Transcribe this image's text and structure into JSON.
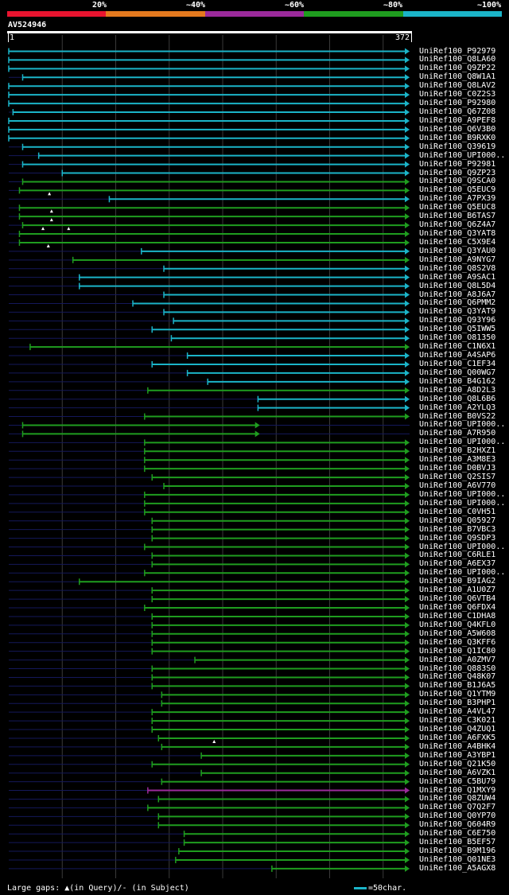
{
  "legend": {
    "colors": [
      "#e8142f",
      "#e4791e",
      "#9b2a9b",
      "#1f9d1f",
      "#1bb4c8"
    ],
    "labels": [
      "20%",
      "~40%",
      "~60%",
      "~80%",
      "~100%"
    ]
  },
  "query": {
    "name": "AV524946",
    "start": "1",
    "end": "372",
    "length": 372
  },
  "footer": {
    "gap_text": "Large gaps: ▲(in Query)/- (in Subject)",
    "scale_text": "=50char.",
    "scale_color": "#1bb4c8"
  },
  "chart_data": {
    "type": "alignment-overview",
    "colors": {
      "c": "#1bb4c8",
      "g": "#1f9d1f",
      "m": "#9b2a9b"
    },
    "hits": [
      {
        "name": "UniRef100_P92979",
        "start": 1,
        "end": 372,
        "color": "c"
      },
      {
        "name": "UniRef100_Q8LA60",
        "start": 1,
        "end": 372,
        "color": "c"
      },
      {
        "name": "UniRef100_Q9ZP22",
        "start": 1,
        "end": 372,
        "color": "c"
      },
      {
        "name": "UniRef100_Q8W1A1",
        "start": 14,
        "end": 372,
        "color": "c"
      },
      {
        "name": "UniRef100_Q8LAV2",
        "start": 1,
        "end": 372,
        "color": "c"
      },
      {
        "name": "UniRef100_C0Z2S3",
        "start": 1,
        "end": 372,
        "color": "c"
      },
      {
        "name": "UniRef100_P92980",
        "start": 1,
        "end": 372,
        "color": "c"
      },
      {
        "name": "UniRef100_Q67Z08",
        "start": 5,
        "end": 372,
        "color": "c"
      },
      {
        "name": "UniRef100_A9PEF8",
        "start": 1,
        "end": 372,
        "color": "c"
      },
      {
        "name": "UniRef100_Q6V3B0",
        "start": 1,
        "end": 372,
        "color": "c"
      },
      {
        "name": "UniRef100_B9RXK0",
        "start": 1,
        "end": 372,
        "color": "c"
      },
      {
        "name": "UniRef100_Q39619",
        "start": 14,
        "end": 372,
        "color": "c"
      },
      {
        "name": "UniRef100_UPI000..",
        "start": 29,
        "end": 372,
        "color": "c"
      },
      {
        "name": "UniRef100_P92981",
        "start": 14,
        "end": 372,
        "color": "c"
      },
      {
        "name": "UniRef100_Q9ZP23",
        "start": 51,
        "end": 372,
        "color": "c"
      },
      {
        "name": "UniRef100_Q9SCA0",
        "start": 14,
        "end": 372,
        "color": "g"
      },
      {
        "name": "UniRef100_Q5EUC9",
        "start": 11,
        "end": 372,
        "color": "g",
        "query_gaps": [
          39
        ]
      },
      {
        "name": "UniRef100_A7PX39",
        "start": 95,
        "end": 372,
        "color": "c"
      },
      {
        "name": "UniRef100_Q5EUC8",
        "start": 11,
        "end": 372,
        "color": "g",
        "query_gaps": [
          41
        ]
      },
      {
        "name": "UniRef100_B6TAS7",
        "start": 11,
        "end": 372,
        "color": "g",
        "query_gaps": [
          41
        ]
      },
      {
        "name": "UniRef100_Q6Z4A7",
        "start": 14,
        "end": 372,
        "color": "g",
        "query_gaps": [
          33,
          57
        ]
      },
      {
        "name": "UniRef100_Q3YAT8",
        "start": 11,
        "end": 372,
        "color": "g"
      },
      {
        "name": "UniRef100_C5X9E4",
        "start": 11,
        "end": 372,
        "color": "g",
        "query_gaps": [
          38
        ]
      },
      {
        "name": "UniRef100_Q3YAU0",
        "start": 125,
        "end": 372,
        "color": "c"
      },
      {
        "name": "UniRef100_A9NYG7",
        "start": 61,
        "end": 372,
        "color": "g"
      },
      {
        "name": "UniRef100_Q8S2V8",
        "start": 146,
        "end": 372,
        "color": "c"
      },
      {
        "name": "UniRef100_A9SAC1",
        "start": 67,
        "end": 372,
        "color": "c"
      },
      {
        "name": "UniRef100_Q8L5D4",
        "start": 67,
        "end": 372,
        "color": "c"
      },
      {
        "name": "UniRef100_A8J6A7",
        "start": 146,
        "end": 372,
        "color": "c"
      },
      {
        "name": "UniRef100_Q6PMM2",
        "start": 117,
        "end": 372,
        "color": "c"
      },
      {
        "name": "UniRef100_Q3YAT9",
        "start": 146,
        "end": 372,
        "color": "c"
      },
      {
        "name": "UniRef100_Q93Y96",
        "start": 155,
        "end": 372,
        "color": "c"
      },
      {
        "name": "UniRef100_Q5IWW5",
        "start": 135,
        "end": 372,
        "color": "c"
      },
      {
        "name": "UniRef100_O81350",
        "start": 153,
        "end": 372,
        "color": "c"
      },
      {
        "name": "UniRef100_C1N6X1",
        "start": 21,
        "end": 372,
        "color": "g"
      },
      {
        "name": "UniRef100_A4SAP6",
        "start": 168,
        "end": 372,
        "color": "c"
      },
      {
        "name": "UniRef100_C1EF34",
        "start": 135,
        "end": 372,
        "color": "c"
      },
      {
        "name": "UniRef100_Q00WG7",
        "start": 168,
        "end": 372,
        "color": "c"
      },
      {
        "name": "UniRef100_B4G162",
        "start": 187,
        "end": 372,
        "color": "c"
      },
      {
        "name": "UniRef100_A8D2L3",
        "start": 131,
        "end": 372,
        "color": "g"
      },
      {
        "name": "UniRef100_Q8L6B6",
        "start": 234,
        "end": 372,
        "color": "c"
      },
      {
        "name": "UniRef100_A2YLQ3",
        "start": 234,
        "end": 372,
        "color": "c"
      },
      {
        "name": "UniRef100_B0VS22",
        "start": 128,
        "end": 372,
        "color": "g"
      },
      {
        "name": "UniRef100_UPI000..",
        "start": 14,
        "end": 232,
        "color": "g"
      },
      {
        "name": "UniRef100_A7R950",
        "start": 14,
        "end": 232,
        "color": "g"
      },
      {
        "name": "UniRef100_UPI000..",
        "start": 128,
        "end": 372,
        "color": "g"
      },
      {
        "name": "UniRef100_B2HXZ1",
        "start": 128,
        "end": 372,
        "color": "g"
      },
      {
        "name": "UniRef100_A3M8E3",
        "start": 128,
        "end": 372,
        "color": "g"
      },
      {
        "name": "UniRef100_D0BVJ3",
        "start": 128,
        "end": 372,
        "color": "g"
      },
      {
        "name": "UniRef100_Q2SIS7",
        "start": 135,
        "end": 372,
        "color": "g"
      },
      {
        "name": "UniRef100_A6V770",
        "start": 146,
        "end": 372,
        "color": "g"
      },
      {
        "name": "UniRef100_UPI000..",
        "start": 128,
        "end": 372,
        "color": "g"
      },
      {
        "name": "UniRef100_UPI000..",
        "start": 128,
        "end": 372,
        "color": "g"
      },
      {
        "name": "UniRef100_C0VH51",
        "start": 128,
        "end": 372,
        "color": "g"
      },
      {
        "name": "UniRef100_Q05927",
        "start": 135,
        "end": 372,
        "color": "g"
      },
      {
        "name": "UniRef100_B7VBC3",
        "start": 135,
        "end": 372,
        "color": "g"
      },
      {
        "name": "UniRef100_Q9SDP3",
        "start": 135,
        "end": 372,
        "color": "g"
      },
      {
        "name": "UniRef100_UPI000..",
        "start": 128,
        "end": 372,
        "color": "g"
      },
      {
        "name": "UniRef100_C6RLE1",
        "start": 135,
        "end": 372,
        "color": "g"
      },
      {
        "name": "UniRef100_A6EX37",
        "start": 135,
        "end": 372,
        "color": "g"
      },
      {
        "name": "UniRef100_UPI000..",
        "start": 128,
        "end": 372,
        "color": "g"
      },
      {
        "name": "UniRef100_B9IAG2",
        "start": 67,
        "end": 372,
        "color": "g"
      },
      {
        "name": "UniRef100_A1U0Z7",
        "start": 135,
        "end": 372,
        "color": "g"
      },
      {
        "name": "UniRef100_Q6VTB4",
        "start": 135,
        "end": 372,
        "color": "g"
      },
      {
        "name": "UniRef100_Q6FDX4",
        "start": 128,
        "end": 372,
        "color": "g"
      },
      {
        "name": "UniRef100_C1DHA8",
        "start": 135,
        "end": 372,
        "color": "g"
      },
      {
        "name": "UniRef100_Q4KFL0",
        "start": 135,
        "end": 372,
        "color": "g"
      },
      {
        "name": "UniRef100_A5W608",
        "start": 135,
        "end": 372,
        "color": "g"
      },
      {
        "name": "UniRef100_Q3KFF6",
        "start": 135,
        "end": 372,
        "color": "g"
      },
      {
        "name": "UniRef100_Q1IC80",
        "start": 135,
        "end": 372,
        "color": "g"
      },
      {
        "name": "UniRef100_A0ZMV7",
        "start": 175,
        "end": 372,
        "color": "g"
      },
      {
        "name": "UniRef100_Q883S0",
        "start": 135,
        "end": 372,
        "color": "g"
      },
      {
        "name": "UniRef100_Q48K07",
        "start": 135,
        "end": 372,
        "color": "g"
      },
      {
        "name": "UniRef100_B1J6A5",
        "start": 135,
        "end": 372,
        "color": "g"
      },
      {
        "name": "UniRef100_Q1YTM9",
        "start": 144,
        "end": 372,
        "color": "g"
      },
      {
        "name": "UniRef100_B3PHP1",
        "start": 144,
        "end": 372,
        "color": "g"
      },
      {
        "name": "UniRef100_A4VL47",
        "start": 135,
        "end": 372,
        "color": "g"
      },
      {
        "name": "UniRef100_C3K021",
        "start": 135,
        "end": 372,
        "color": "g"
      },
      {
        "name": "UniRef100_Q4ZUQ1",
        "start": 135,
        "end": 372,
        "color": "g"
      },
      {
        "name": "UniRef100_A6FXK5",
        "start": 141,
        "end": 372,
        "color": "g",
        "query_gaps": [
          193
        ]
      },
      {
        "name": "UniRef100_A4BHK4",
        "start": 144,
        "end": 372,
        "color": "g"
      },
      {
        "name": "UniRef100_A3YBP1",
        "start": 181,
        "end": 372,
        "color": "g"
      },
      {
        "name": "UniRef100_Q21K50",
        "start": 135,
        "end": 372,
        "color": "g"
      },
      {
        "name": "UniRef100_A6VZK1",
        "start": 181,
        "end": 372,
        "color": "g"
      },
      {
        "name": "UniRef100_C5BU79",
        "start": 144,
        "end": 372,
        "color": "g"
      },
      {
        "name": "UniRef100_Q1MXY9",
        "start": 131,
        "end": 372,
        "color": "m"
      },
      {
        "name": "UniRef100_Q8ZUW4",
        "start": 141,
        "end": 372,
        "color": "g"
      },
      {
        "name": "UniRef100_Q7Q2F7",
        "start": 131,
        "end": 372,
        "color": "g"
      },
      {
        "name": "UniRef100_Q0YP70",
        "start": 141,
        "end": 372,
        "color": "g"
      },
      {
        "name": "UniRef100_Q604R9",
        "start": 141,
        "end": 372,
        "color": "g"
      },
      {
        "name": "UniRef100_C6E750",
        "start": 165,
        "end": 372,
        "color": "g"
      },
      {
        "name": "UniRef100_B5EF57",
        "start": 165,
        "end": 372,
        "color": "g"
      },
      {
        "name": "UniRef100_B9M196",
        "start": 160,
        "end": 372,
        "color": "g"
      },
      {
        "name": "UniRef100_Q01NE3",
        "start": 157,
        "end": 372,
        "color": "g"
      },
      {
        "name": "UniRef100_A5AGX8",
        "start": 247,
        "end": 372,
        "color": "g"
      }
    ]
  }
}
